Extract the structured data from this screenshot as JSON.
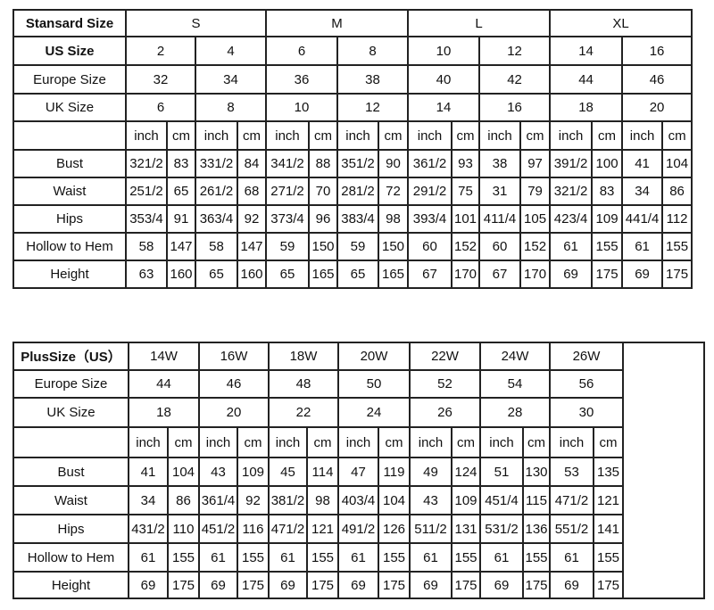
{
  "standard": {
    "title": "Stansard Size",
    "groups": [
      "S",
      "M",
      "L",
      "XL"
    ],
    "rows": [
      {
        "label": "US Size",
        "values": [
          "2",
          "4",
          "6",
          "8",
          "10",
          "12",
          "14",
          "16"
        ]
      },
      {
        "label": "Europe Size",
        "values": [
          "32",
          "34",
          "36",
          "38",
          "40",
          "42",
          "44",
          "46"
        ]
      },
      {
        "label": "UK Size",
        "values": [
          "6",
          "8",
          "10",
          "12",
          "14",
          "16",
          "18",
          "20"
        ]
      }
    ],
    "units": [
      "inch",
      "cm"
    ],
    "measures": [
      {
        "label": "Bust",
        "values": [
          "321/2",
          "83",
          "331/2",
          "84",
          "341/2",
          "88",
          "351/2",
          "90",
          "361/2",
          "93",
          "38",
          "97",
          "391/2",
          "100",
          "41",
          "104"
        ]
      },
      {
        "label": "Waist",
        "values": [
          "251/2",
          "65",
          "261/2",
          "68",
          "271/2",
          "70",
          "281/2",
          "72",
          "291/2",
          "75",
          "31",
          "79",
          "321/2",
          "83",
          "34",
          "86"
        ]
      },
      {
        "label": "Hips",
        "values": [
          "353/4",
          "91",
          "363/4",
          "92",
          "373/4",
          "96",
          "383/4",
          "98",
          "393/4",
          "101",
          "411/4",
          "105",
          "423/4",
          "109",
          "441/4",
          "112"
        ]
      },
      {
        "label": "Hollow to Hem",
        "values": [
          "58",
          "147",
          "58",
          "147",
          "59",
          "150",
          "59",
          "150",
          "60",
          "152",
          "60",
          "152",
          "61",
          "155",
          "61",
          "155"
        ]
      },
      {
        "label": "Height",
        "values": [
          "63",
          "160",
          "65",
          "160",
          "65",
          "165",
          "65",
          "165",
          "67",
          "170",
          "67",
          "170",
          "69",
          "175",
          "69",
          "175"
        ]
      }
    ]
  },
  "plus": {
    "title": "PlusSize（US）",
    "sizes": [
      "14W",
      "16W",
      "18W",
      "20W",
      "22W",
      "24W",
      "26W"
    ],
    "rows": [
      {
        "label": "Europe Size",
        "values": [
          "44",
          "46",
          "48",
          "50",
          "52",
          "54",
          "56"
        ]
      },
      {
        "label": "UK Size",
        "values": [
          "18",
          "20",
          "22",
          "24",
          "26",
          "28",
          "30"
        ]
      }
    ],
    "units": [
      "inch",
      "cm"
    ],
    "measures": [
      {
        "label": "Bust",
        "values": [
          "41",
          "104",
          "43",
          "109",
          "45",
          "114",
          "47",
          "119",
          "49",
          "124",
          "51",
          "130",
          "53",
          "135"
        ]
      },
      {
        "label": "Waist",
        "values": [
          "34",
          "86",
          "361/4",
          "92",
          "381/2",
          "98",
          "403/4",
          "104",
          "43",
          "109",
          "451/4",
          "115",
          "471/2",
          "121"
        ]
      },
      {
        "label": "Hips",
        "values": [
          "431/2",
          "110",
          "451/2",
          "116",
          "471/2",
          "121",
          "491/2",
          "126",
          "511/2",
          "131",
          "531/2",
          "136",
          "551/2",
          "141"
        ]
      },
      {
        "label": "Hollow to Hem",
        "values": [
          "61",
          "155",
          "61",
          "155",
          "61",
          "155",
          "61",
          "155",
          "61",
          "155",
          "61",
          "155",
          "61",
          "155"
        ]
      },
      {
        "label": "Height",
        "values": [
          "69",
          "175",
          "69",
          "175",
          "69",
          "175",
          "69",
          "175",
          "69",
          "175",
          "69",
          "175",
          "69",
          "175"
        ]
      }
    ]
  }
}
